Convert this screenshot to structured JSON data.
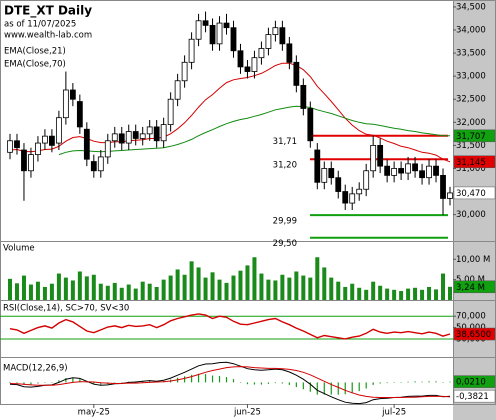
{
  "chart_data": {
    "type": "candlestick",
    "title": "DTE_XT Daily",
    "subtitle": "as of 11/07/2025",
    "source": "www.wealth-lab.com",
    "categories": [
      null,
      null,
      null,
      null,
      null,
      null,
      null,
      null,
      null,
      null,
      null,
      null,
      "may-25",
      null,
      null,
      null,
      null,
      null,
      null,
      null,
      null,
      null,
      null,
      null,
      null,
      null,
      null,
      null,
      null,
      null,
      null,
      null,
      null,
      null,
      "jun-25",
      null,
      null,
      null,
      null,
      null,
      null,
      null,
      null,
      null,
      null,
      null,
      null,
      null,
      null,
      null,
      null,
      null,
      null,
      null,
      null,
      "jul-25",
      null,
      null,
      null,
      null,
      null,
      null,
      null,
      null
    ],
    "open": [
      31.35,
      31.6,
      31.4,
      30.95,
      31.3,
      31.55,
      31.7,
      31.55,
      32.1,
      32.7,
      32.45,
      31.85,
      31.15,
      30.95,
      31.25,
      31.6,
      31.75,
      31.55,
      31.8,
      31.65,
      31.75,
      31.9,
      31.6,
      31.95,
      32.5,
      32.9,
      33.3,
      33.8,
      34.2,
      34.1,
      33.7,
      34.15,
      34.05,
      33.55,
      33.2,
      33.1,
      33.4,
      33.6,
      33.9,
      34.05,
      33.7,
      33.3,
      32.8,
      32.3,
      31.4,
      30.7,
      31.0,
      30.8,
      30.5,
      30.25,
      30.45,
      30.55,
      30.95,
      31.5,
      31.05,
      30.85,
      31.0,
      30.9,
      31.1,
      30.95,
      30.8,
      31.05,
      30.85,
      30.35
    ],
    "high": [
      31.75,
      31.75,
      31.55,
      31.45,
      31.7,
      31.85,
      31.85,
      32.25,
      33.1,
      32.85,
      32.6,
      32.0,
      31.3,
      31.4,
      31.75,
      31.9,
      31.9,
      31.95,
      31.95,
      31.9,
      32.05,
      32.05,
      32.1,
      32.65,
      33.05,
      33.45,
      33.95,
      34.35,
      34.4,
      34.25,
      34.3,
      34.35,
      34.2,
      33.7,
      33.35,
      33.55,
      33.75,
      34.05,
      34.2,
      34.2,
      33.85,
      33.45,
      32.95,
      32.45,
      31.55,
      31.15,
      31.15,
      30.95,
      30.65,
      30.6,
      30.7,
      31.1,
      31.71,
      31.65,
      31.2,
      31.15,
      31.15,
      31.25,
      31.25,
      31.1,
      31.2,
      31.2,
      31.0,
      30.6
    ],
    "low": [
      31.2,
      31.3,
      30.3,
      30.8,
      31.15,
      31.4,
      31.35,
      31.4,
      31.95,
      32.35,
      31.75,
      31.05,
      30.8,
      30.8,
      31.1,
      31.45,
      31.4,
      31.4,
      31.5,
      31.5,
      31.6,
      31.45,
      31.45,
      31.8,
      32.35,
      32.75,
      33.15,
      33.65,
      33.95,
      33.55,
      33.55,
      33.9,
      33.4,
      33.05,
      32.95,
      32.95,
      33.25,
      33.45,
      33.75,
      33.55,
      33.15,
      32.65,
      32.15,
      31.45,
      30.55,
      30.55,
      30.65,
      30.35,
      30.1,
      30.1,
      30.3,
      30.4,
      30.8,
      30.9,
      30.7,
      30.7,
      30.75,
      30.75,
      30.8,
      30.65,
      30.65,
      30.7,
      29.99,
      30.2
    ],
    "close": [
      31.6,
      31.45,
      30.95,
      31.3,
      31.55,
      31.7,
      31.5,
      32.1,
      32.7,
      32.5,
      31.9,
      31.2,
      30.95,
      31.25,
      31.6,
      31.75,
      31.55,
      31.8,
      31.65,
      31.75,
      31.9,
      31.6,
      31.95,
      32.5,
      32.9,
      33.3,
      33.8,
      34.2,
      34.1,
      33.7,
      34.15,
      34.05,
      33.55,
      33.2,
      33.1,
      33.4,
      33.6,
      33.9,
      34.05,
      33.7,
      33.3,
      32.8,
      32.3,
      31.6,
      30.7,
      31.0,
      30.8,
      30.5,
      30.25,
      30.45,
      30.55,
      30.95,
      31.5,
      31.05,
      30.85,
      31.0,
      30.9,
      31.1,
      30.95,
      30.8,
      31.05,
      30.85,
      30.35,
      30.47
    ],
    "series": [
      {
        "name": "EMA(Close,21)",
        "color": "#d40000",
        "values": [
          31.4,
          31.41,
          31.37,
          31.36,
          31.38,
          31.41,
          31.42,
          31.48,
          31.59,
          31.67,
          31.69,
          31.65,
          31.59,
          31.56,
          31.56,
          31.58,
          31.58,
          31.6,
          31.61,
          31.62,
          31.65,
          31.65,
          31.68,
          31.75,
          31.86,
          31.99,
          32.15,
          32.33,
          32.49,
          32.6,
          32.74,
          32.86,
          32.92,
          32.95,
          32.97,
          33.01,
          33.06,
          33.14,
          33.23,
          33.28,
          33.28,
          33.23,
          33.14,
          32.99,
          32.78,
          32.62,
          32.45,
          32.27,
          32.09,
          31.94,
          31.82,
          31.74,
          31.72,
          31.66,
          31.59,
          31.54,
          31.48,
          31.45,
          31.4,
          31.35,
          31.33,
          31.29,
          31.2,
          31.145
        ]
      },
      {
        "name": "EMA(Close,70)",
        "color": "#108a10",
        "values": [
          null,
          null,
          null,
          null,
          null,
          null,
          null,
          31.3,
          31.35,
          31.38,
          31.39,
          31.38,
          31.37,
          31.36,
          31.37,
          31.38,
          31.39,
          31.4,
          31.41,
          31.42,
          31.43,
          31.44,
          31.45,
          31.48,
          31.52,
          31.57,
          31.63,
          31.71,
          31.78,
          31.84,
          31.91,
          31.97,
          32.02,
          32.06,
          32.09,
          32.13,
          32.17,
          32.22,
          32.27,
          32.3,
          32.33,
          32.35,
          32.34,
          32.32,
          32.27,
          32.23,
          32.19,
          32.14,
          32.09,
          32.04,
          32.0,
          31.97,
          31.96,
          31.93,
          31.9,
          31.87,
          31.85,
          31.82,
          31.8,
          31.77,
          31.75,
          31.73,
          31.71,
          31.707
        ]
      }
    ],
    "ylim": [
      29.45,
      34.65
    ],
    "yticks": [
      {
        "value": 34.5,
        "label": "34,500"
      },
      {
        "value": 34.0,
        "label": "34,000"
      },
      {
        "value": 33.5,
        "label": "33,500"
      },
      {
        "value": 33.0,
        "label": "33,000"
      },
      {
        "value": 32.5,
        "label": "32,500"
      },
      {
        "value": 32.0,
        "label": "32,000"
      },
      {
        "value": 31.5,
        "label": "31,500"
      },
      {
        "value": 31.0,
        "label": "31,000"
      },
      {
        "value": 30.5,
        "label": "30,500"
      },
      {
        "value": 30.0,
        "label": "30,000"
      }
    ],
    "levels": [
      {
        "value": 31.71,
        "label": "31,71",
        "color": "#e00000"
      },
      {
        "value": 31.2,
        "label": "31,20",
        "color": "#e00000"
      },
      {
        "value": 29.99,
        "label": "29,99",
        "color": "#10a010"
      },
      {
        "value": 29.5,
        "label": "29,50",
        "color": "#10a010"
      }
    ],
    "badges": [
      {
        "value": 31.707,
        "label": "31,707",
        "color": "#10a010"
      },
      {
        "value": 31.145,
        "label": "31,145",
        "color": "#e00000"
      },
      {
        "value": 30.47,
        "label": "30,470",
        "color": "#ffffff"
      }
    ],
    "volume": {
      "title": "Volume",
      "color": "#1a8a1a",
      "values": [
        5.2,
        4.1,
        6.0,
        3.8,
        4.5,
        3.2,
        4.0,
        6.5,
        5.5,
        4.8,
        7.0,
        5.8,
        6.2,
        4.0,
        3.5,
        4.2,
        3.0,
        3.8,
        2.8,
        4.5,
        4.0,
        3.2,
        5.0,
        6.0,
        7.5,
        6.2,
        9.5,
        8.0,
        5.5,
        6.8,
        5.0,
        4.2,
        6.0,
        7.2,
        8.5,
        10.5,
        6.5,
        5.0,
        4.8,
        6.2,
        5.5,
        7.0,
        6.0,
        5.5,
        10.5,
        8.0,
        5.5,
        4.5,
        3.2,
        4.0,
        3.0,
        2.5,
        4.5,
        3.5,
        2.8,
        2.5,
        2.2,
        2.8,
        3.0,
        2.5,
        3.2,
        2.6,
        6.5,
        3.24
      ],
      "ylim": [
        0,
        14
      ],
      "yticks": [
        {
          "value": 10,
          "label": "10,00 M"
        },
        {
          "value": 5,
          "label": "5,00 M"
        }
      ],
      "badge": {
        "value": 3.24,
        "label": "3,24 M",
        "color": "#10a010"
      }
    },
    "rsi": {
      "title": "RSI(Close,14), SC>70, SV<30",
      "color": "#d40000",
      "values": [
        48,
        46,
        40,
        45,
        50,
        53,
        49,
        58,
        64,
        60,
        52,
        44,
        41,
        46,
        51,
        53,
        50,
        54,
        52,
        53,
        55,
        50,
        55,
        62,
        66,
        69,
        72,
        74,
        72,
        66,
        70,
        68,
        61,
        56,
        55,
        58,
        61,
        64,
        66,
        60,
        55,
        49,
        44,
        38,
        32,
        36,
        34,
        32,
        30,
        33,
        35,
        40,
        47,
        42,
        40,
        42,
        41,
        43,
        41,
        39,
        42,
        40,
        35,
        38.65
      ],
      "ylim": [
        0,
        95
      ],
      "yticks": [
        {
          "value": 70,
          "label": "70,000"
        },
        {
          "value": 50,
          "label": "50,000"
        },
        {
          "value": 30,
          "label": "30,000"
        }
      ],
      "badge": {
        "value": 38.65,
        "label": "38,6500",
        "color": "#e00000"
      }
    },
    "macd": {
      "title": "MACD(12,26,9)",
      "series": [
        {
          "color": "#000000",
          "values": [
            -0.05,
            -0.06,
            -0.12,
            -0.13,
            -0.11,
            -0.08,
            -0.07,
            0.0,
            0.09,
            0.13,
            0.11,
            0.03,
            -0.05,
            -0.08,
            -0.07,
            -0.04,
            -0.03,
            0.0,
            0.01,
            0.03,
            0.05,
            0.03,
            0.06,
            0.12,
            0.2,
            0.28,
            0.37,
            0.46,
            0.51,
            0.52,
            0.55,
            0.56,
            0.52,
            0.45,
            0.38,
            0.35,
            0.34,
            0.35,
            0.37,
            0.35,
            0.29,
            0.2,
            0.09,
            -0.05,
            -0.22,
            -0.31,
            -0.4,
            -0.48,
            -0.55,
            -0.58,
            -0.59,
            -0.56,
            -0.48,
            -0.45,
            -0.44,
            -0.42,
            -0.41,
            -0.39,
            -0.38,
            -0.38,
            -0.36,
            -0.36,
            -0.4,
            -0.3821
          ]
        },
        {
          "color": "#d40000",
          "values": [
            -0.03,
            -0.04,
            -0.05,
            -0.07,
            -0.08,
            -0.08,
            -0.08,
            -0.06,
            -0.03,
            0.0,
            0.02,
            0.02,
            0.01,
            -0.01,
            -0.02,
            -0.03,
            -0.03,
            -0.02,
            -0.02,
            -0.01,
            0.0,
            0.01,
            0.02,
            0.04,
            0.07,
            0.11,
            0.16,
            0.22,
            0.28,
            0.33,
            0.37,
            0.41,
            0.43,
            0.44,
            0.43,
            0.41,
            0.4,
            0.39,
            0.39,
            0.38,
            0.36,
            0.33,
            0.28,
            0.21,
            0.12,
            0.03,
            -0.06,
            -0.14,
            -0.22,
            -0.29,
            -0.35,
            -0.39,
            -0.41,
            -0.42,
            -0.42,
            -0.42,
            -0.42,
            -0.41,
            -0.41,
            -0.4,
            -0.39,
            -0.39,
            -0.39,
            -0.4031
          ]
        }
      ],
      "histogram": {
        "color": "#1a9a1a",
        "values": [
          -0.02,
          -0.02,
          -0.07,
          -0.06,
          -0.03,
          0.0,
          0.01,
          0.06,
          0.12,
          0.13,
          0.09,
          0.01,
          -0.06,
          -0.07,
          -0.05,
          -0.01,
          0.0,
          0.02,
          0.03,
          0.04,
          0.05,
          0.02,
          0.04,
          0.08,
          0.13,
          0.17,
          0.21,
          0.24,
          0.23,
          0.19,
          0.18,
          0.15,
          0.09,
          0.01,
          -0.05,
          -0.06,
          -0.06,
          -0.04,
          -0.02,
          -0.03,
          -0.07,
          -0.13,
          -0.19,
          -0.26,
          -0.34,
          -0.34,
          -0.34,
          -0.34,
          -0.33,
          -0.29,
          -0.24,
          -0.17,
          -0.07,
          -0.03,
          -0.02,
          0.0,
          0.01,
          0.02,
          0.03,
          0.02,
          0.03,
          0.03,
          -0.01,
          0.021
        ]
      },
      "ylim": [
        -0.6,
        0.65
      ],
      "badges": [
        {
          "value": 0.021,
          "label": "0,0210",
          "color": "#10a010"
        },
        {
          "value": -0.3821,
          "label": "-0,3821",
          "color": "#ffffff"
        }
      ]
    }
  }
}
